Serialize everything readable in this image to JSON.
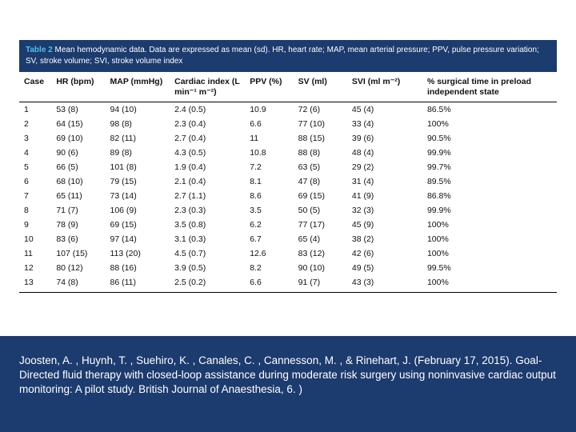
{
  "table": {
    "caption_label": "Table 2",
    "caption_text": "Mean hemodynamic data. Data are expressed as mean (sd). HR, heart rate; MAP, mean arterial pressure; PPV, pulse pressure variation; SV, stroke volume; SVI, stroke volume index",
    "columns": [
      "Case",
      "HR (bpm)",
      "MAP (mmHg)",
      "Cardiac index (L min⁻¹ m⁻²)",
      "PPV (%)",
      "SV (ml)",
      "SVI (ml m⁻²)",
      "% surgical time in preload independent state"
    ],
    "rows": [
      [
        "1",
        "53 (8)",
        "94 (10)",
        "2.4 (0.5)",
        "10.9",
        "72 (6)",
        "45 (4)",
        "86.5%"
      ],
      [
        "2",
        "64 (15)",
        "98 (8)",
        "2.3 (0.4)",
        "6.6",
        "77 (10)",
        "33 (4)",
        "100%"
      ],
      [
        "3",
        "69 (10)",
        "82 (11)",
        "2.7 (0.4)",
        "11",
        "88 (15)",
        "39 (6)",
        "90.5%"
      ],
      [
        "4",
        "90 (6)",
        "89 (8)",
        "4.3 (0.5)",
        "10.8",
        "88 (8)",
        "48 (4)",
        "99.9%"
      ],
      [
        "5",
        "66 (5)",
        "101 (8)",
        "1.9 (0.4)",
        "7.2",
        "63 (5)",
        "29 (2)",
        "99.7%"
      ],
      [
        "6",
        "68 (10)",
        "79 (15)",
        "2.1 (0.4)",
        "8.1",
        "47 (8)",
        "31 (4)",
        "89.5%"
      ],
      [
        "7",
        "65 (11)",
        "73 (14)",
        "2.7 (1.1)",
        "8.6",
        "69 (15)",
        "41 (9)",
        "86.8%"
      ],
      [
        "8",
        "71 (7)",
        "106 (9)",
        "2.3 (0.3)",
        "3.5",
        "50 (5)",
        "32 (3)",
        "99.9%"
      ],
      [
        "9",
        "78 (9)",
        "69 (15)",
        "3.5 (0.8)",
        "6.2",
        "77 (17)",
        "45 (9)",
        "100%"
      ],
      [
        "10",
        "83 (6)",
        "97 (14)",
        "3.1 (0.3)",
        "6.7",
        "65 (4)",
        "38 (2)",
        "100%"
      ],
      [
        "11",
        "107 (15)",
        "113 (20)",
        "4.5 (0.7)",
        "12.6",
        "83 (12)",
        "42 (6)",
        "100%"
      ],
      [
        "12",
        "80 (12)",
        "88 (16)",
        "3.9 (0.5)",
        "8.2",
        "90 (10)",
        "49 (5)",
        "99.5%"
      ],
      [
        "13",
        "74 (8)",
        "86 (11)",
        "2.5 (0.2)",
        "6.6",
        "91 (7)",
        "43 (3)",
        "100%"
      ]
    ]
  },
  "citation": {
    "text": "Joosten, A. , Huynh, T. , Suehiro, K. , Canales, C. , Cannesson, M. , & Rinehart, J. (February 17, 2015).  Goal-Directed fluid therapy with closed-loop assistance during moderate risk surgery using noninvasive cardiac output monitoring: A pilot study. British Journal of Anaesthesia, 6. )"
  },
  "styling": {
    "slide_bg": "#ffffff",
    "caption_bg": "#1c3b6e",
    "caption_label_color": "#4fc1e9",
    "caption_text_color": "#ffffff",
    "table_text_color": "#111111",
    "rule_color": "#000000",
    "band_bg": "#1c3b6e",
    "citation_color": "#ffffff",
    "caption_fontsize": 10,
    "header_fontsize": 10.5,
    "body_fontsize": 10.5,
    "citation_fontsize": 13.5,
    "slide_width": 720,
    "slide_height": 540
  }
}
